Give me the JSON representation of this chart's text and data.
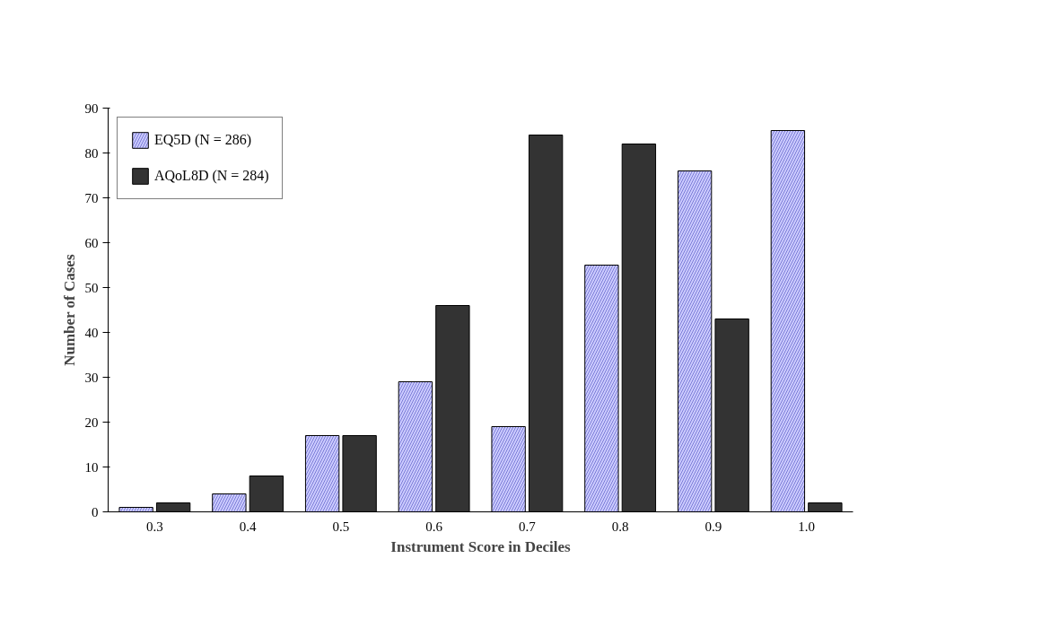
{
  "chart_data": {
    "type": "bar",
    "xlabel": "Instrument Score in Deciles",
    "ylabel": "Number of Cases",
    "categories": [
      "0.3",
      "0.4",
      "0.5",
      "0.6",
      "0.7",
      "0.8",
      "0.9",
      "1.0"
    ],
    "series": [
      {
        "name": "EQ5D (N = 286)",
        "color": "#ccccff",
        "values": [
          1,
          4,
          17,
          29,
          19,
          55,
          76,
          85
        ]
      },
      {
        "name": "AQoL8D (N = 284)",
        "color": "#333333",
        "values": [
          2,
          8,
          17,
          46,
          84,
          82,
          43,
          2
        ]
      }
    ],
    "ylim": [
      0,
      90
    ],
    "yticks": [
      0,
      10,
      20,
      30,
      40,
      50,
      60,
      70,
      80,
      90
    ],
    "grid": false,
    "legend": "top left"
  }
}
